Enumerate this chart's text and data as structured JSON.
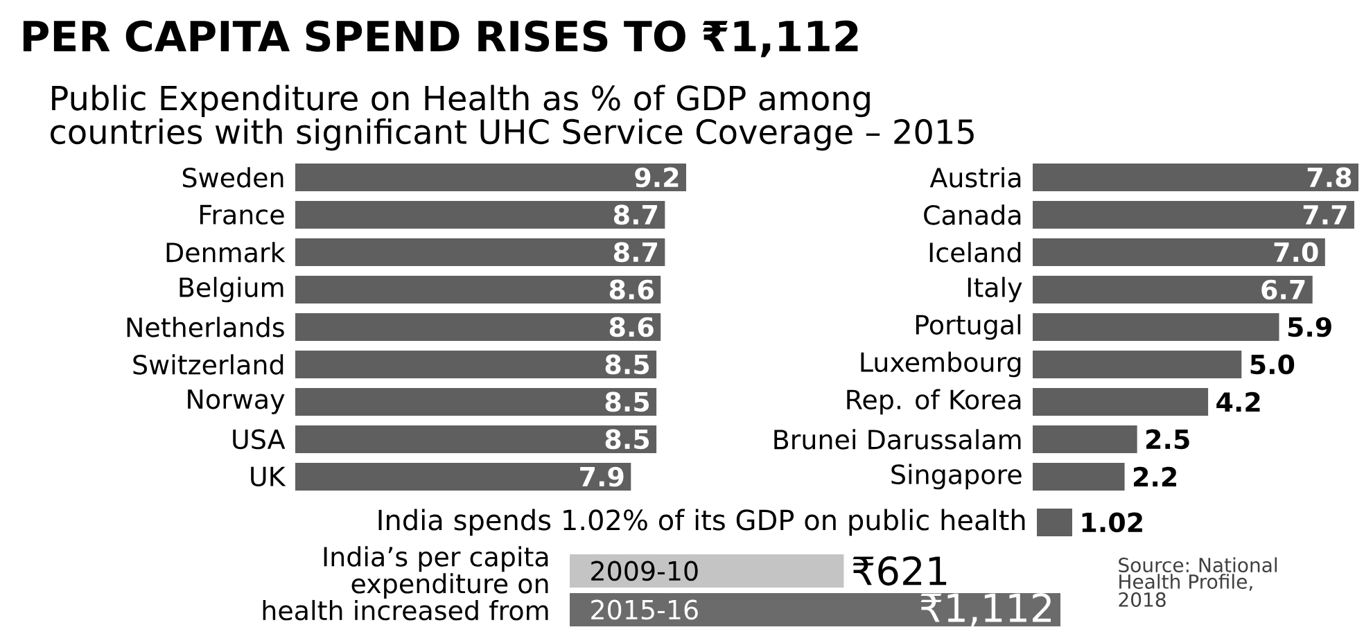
{
  "chart_data": [
    {
      "type": "bar",
      "orientation": "horizontal",
      "title": "PER CAPITA SPEND RISES TO ₹1,112",
      "subtitle": "Public Expenditure on Health as % of GDP among countries with significant UHC Service Coverage – 2015",
      "categories": [
        "Sweden",
        "France",
        "Denmark",
        "Belgium",
        "Netherlands",
        "Switzerland",
        "Norway",
        "USA",
        "UK"
      ],
      "values": [
        9.2,
        8.7,
        8.7,
        8.6,
        8.6,
        8.5,
        8.5,
        8.5,
        7.9
      ],
      "color": "#5f5f5f",
      "data_labels": true,
      "tick_labels": "y"
    },
    {
      "type": "bar",
      "orientation": "horizontal",
      "categories": [
        "Austria",
        "Canada",
        "Iceland",
        "Italy",
        "Portugal",
        "Luxembourg",
        "Rep. of Korea",
        "Brunei Darussalam",
        "Singapore"
      ],
      "values": [
        7.8,
        7.7,
        7.0,
        6.7,
        5.9,
        5.0,
        4.2,
        2.5,
        2.2
      ],
      "color": "#5f5f5f",
      "tick_labels": "y",
      "value_labels": [
        "7.8",
        "7.7",
        "7.0",
        "6.7",
        "5.9",
        "5.0",
        "4.2",
        "2.5",
        "2.2"
      ]
    },
    {
      "type": "bar",
      "orientation": "horizontal",
      "categories": [
        "India spends 1.02% of its GDP on public health"
      ],
      "values": [
        1.02
      ],
      "color": "#5f5f5f",
      "data_labels": true,
      "tick_labels": "y"
    },
    {
      "type": "bar",
      "orientation": "horizontal",
      "title": "India’s per capita expenditure on health increased from",
      "categories": [
        "2009-10",
        "2015-16"
      ],
      "values": [
        621,
        1112
      ],
      "colors": [
        "#c4c4c4",
        "#6b6b6b"
      ],
      "value_labels": [
        "₹621",
        "₹1,112"
      ],
      "tick_labels": "y",
      "annotations": [
        "Source: National Health Profile, 2018"
      ]
    }
  ]
}
